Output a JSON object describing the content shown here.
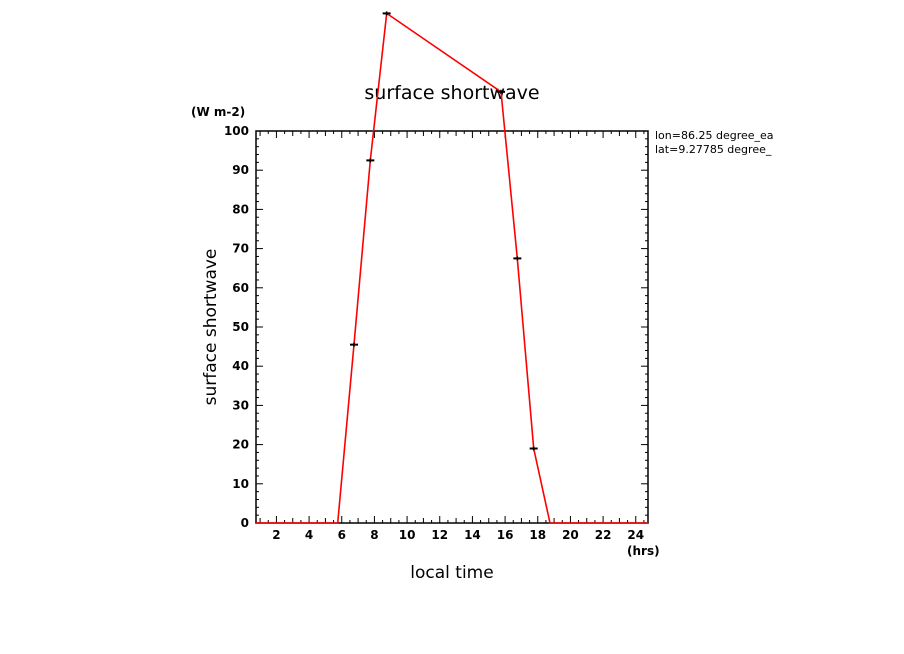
{
  "chart_data": {
    "type": "line",
    "title": "surface shortwave",
    "xlabel": "local time",
    "ylabel": "surface shortwave",
    "x_unit": "(hrs)",
    "y_unit": "(W m-2)",
    "annotations": [
      "lon=86.25 degree_ea",
      "lat=9.27785 degree_"
    ],
    "xlim": [
      0.75,
      24.75
    ],
    "ylim": [
      0,
      100
    ],
    "x_ticks": [
      2,
      4,
      6,
      8,
      10,
      12,
      14,
      16,
      18,
      20,
      22,
      24
    ],
    "y_ticks": [
      0,
      10,
      20,
      30,
      40,
      50,
      60,
      70,
      80,
      90,
      100
    ],
    "grid": false,
    "line_color": "#ff0000",
    "marker_color": "#000000",
    "series": [
      {
        "x": [
          0.75,
          1.75,
          2.75,
          3.75,
          4.75,
          5.75,
          6.75,
          7.75,
          8.75,
          15.75,
          16.75,
          17.75,
          18.75,
          19.75,
          20.75,
          21.75,
          22.75,
          23.75,
          24.75
        ],
        "values": [
          0,
          0,
          0,
          0,
          0,
          0,
          45.5,
          92.5,
          130,
          110,
          67.5,
          19,
          0,
          0,
          0,
          0,
          0,
          0,
          0
        ]
      }
    ]
  }
}
